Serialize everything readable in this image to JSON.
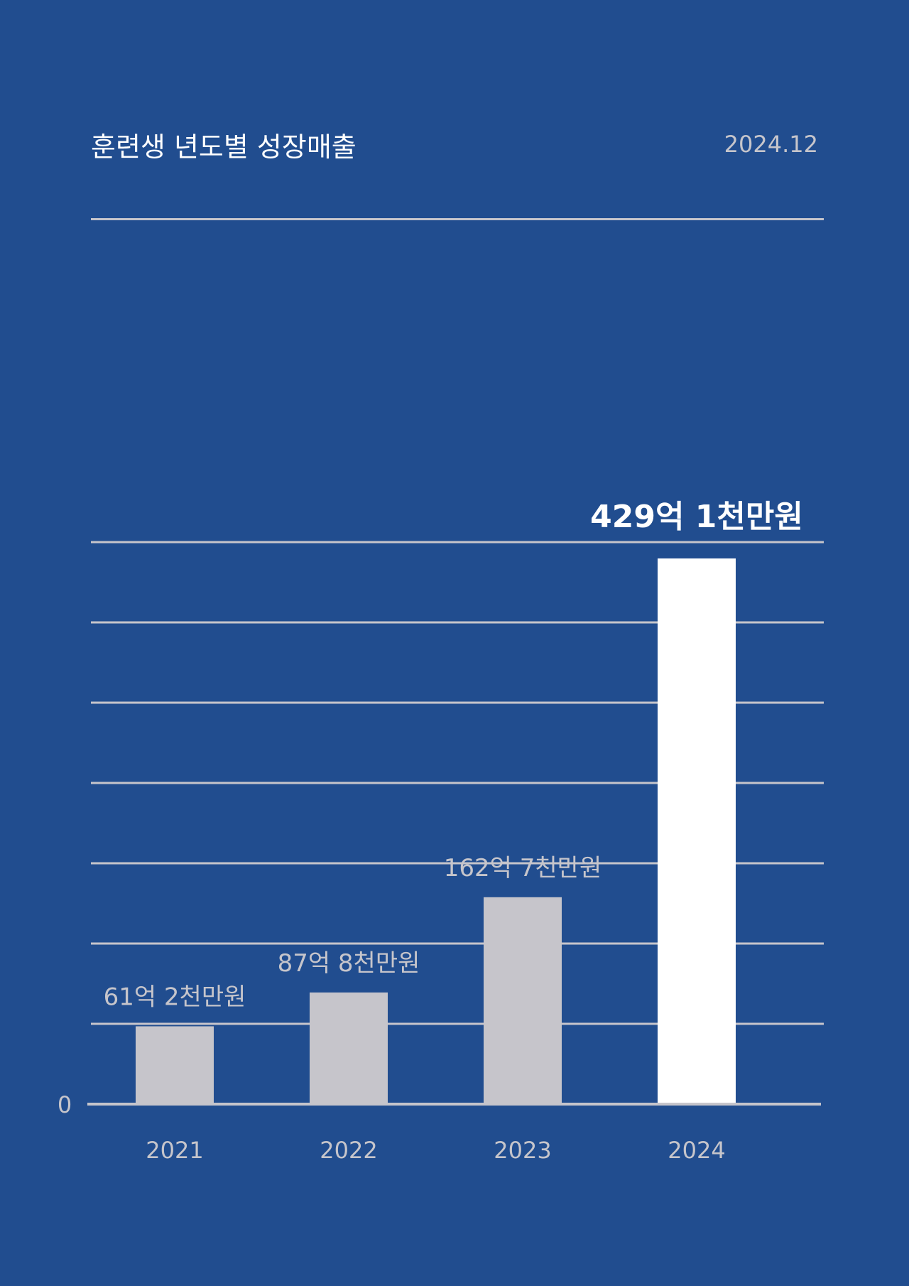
{
  "header": {
    "title": "훈련생 년도별 성장매출",
    "date": "2024.12"
  },
  "chart_data": {
    "type": "bar",
    "title": "훈련생 년도별 성장매출",
    "categories": [
      "2021",
      "2022",
      "2023",
      "2024"
    ],
    "values": [
      61.2,
      87.8,
      162.7,
      429.1
    ],
    "unit": "억원",
    "data_labels": [
      "61억 2천만원",
      "87억 8천만원",
      "162억 7천만원",
      "429억 1천만원"
    ],
    "highlight_index": 3,
    "y_tick_labels": [
      "0"
    ],
    "grid": true,
    "colors": {
      "background": "#214d8f",
      "bar": "#c6c5cb",
      "highlight_bar": "#ffffff",
      "grid": "#c6c5cb"
    }
  }
}
